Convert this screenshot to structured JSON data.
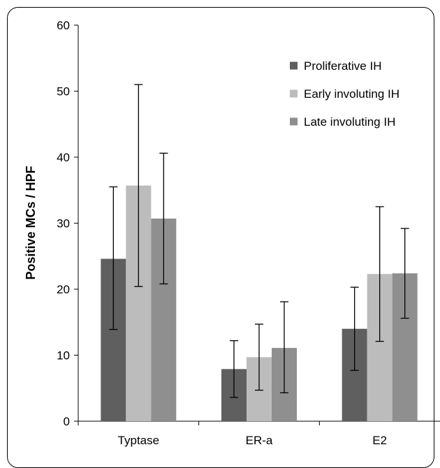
{
  "chart_data": {
    "type": "bar",
    "title": "",
    "xlabel": "",
    "ylabel": "Positive MCs / HPF",
    "ylim": [
      0,
      60
    ],
    "yticks": [
      0,
      10,
      20,
      30,
      40,
      50,
      60
    ],
    "grid": false,
    "legend_position": "top-right",
    "error_bars": true,
    "categories": [
      "Typtase",
      "ER-a",
      "E2"
    ],
    "series": [
      {
        "name": "Proliferative IH",
        "color": "#5f5f5f",
        "values": [
          24.6,
          7.9,
          14.0
        ],
        "error_low": [
          13.9,
          3.6,
          7.7
        ],
        "error_high": [
          35.5,
          12.2,
          20.3
        ]
      },
      {
        "name": "Early involuting IH",
        "color": "#bcbcbc",
        "values": [
          35.7,
          9.7,
          22.3
        ],
        "error_low": [
          20.4,
          4.7,
          12.1
        ],
        "error_high": [
          51.0,
          14.7,
          32.5
        ]
      },
      {
        "name": "Late involuting IH",
        "color": "#8f8f8f",
        "values": [
          30.7,
          11.1,
          22.4
        ],
        "error_low": [
          20.8,
          4.3,
          15.6
        ],
        "error_high": [
          40.6,
          18.1,
          29.2
        ]
      }
    ]
  }
}
